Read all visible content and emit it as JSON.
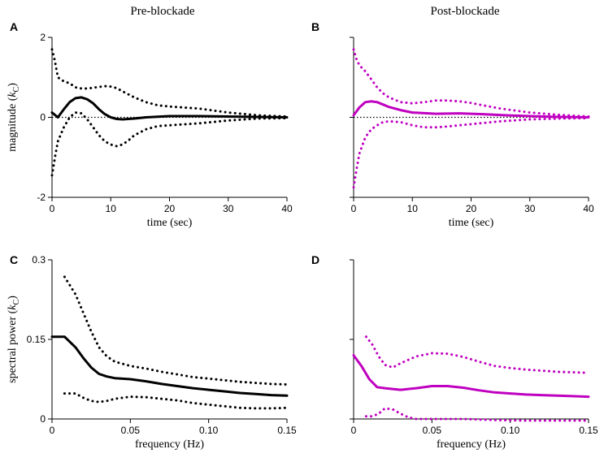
{
  "column_titles": [
    "Pre-blockade",
    "Post-blockade"
  ],
  "colors": {
    "pre": "#000000",
    "post": "#c000c0"
  },
  "chart_data": [
    {
      "panel": "A",
      "type": "line",
      "title": "Pre-blockade",
      "xlabel": "time (sec)",
      "ylabel": "magnitude (k_C)",
      "ylabel_main": "magnitude (",
      "ylabel_sym": "k",
      "ylabel_sub": "C",
      "ylabel_close": ")",
      "xlim": [
        0,
        40
      ],
      "ylim": [
        -2,
        2
      ],
      "xticks": [
        0,
        10,
        20,
        30,
        40
      ],
      "xtick_labels": [
        "0",
        "10",
        "20",
        "30",
        "40"
      ],
      "yticks": [
        -2,
        0,
        2
      ],
      "ytick_labels": [
        "-2",
        "0",
        "2"
      ],
      "zero_line": true,
      "color": "#000000",
      "series": [
        {
          "name": "mean",
          "style": "solid",
          "points": [
            [
              0,
              0.12
            ],
            [
              1,
              0.0
            ],
            [
              2,
              0.2
            ],
            [
              3,
              0.38
            ],
            [
              4,
              0.48
            ],
            [
              5,
              0.5
            ],
            [
              6,
              0.45
            ],
            [
              7,
              0.35
            ],
            [
              8,
              0.2
            ],
            [
              9,
              0.08
            ],
            [
              10,
              0.0
            ],
            [
              11,
              -0.04
            ],
            [
              12,
              -0.05
            ],
            [
              14,
              -0.03
            ],
            [
              16,
              0.0
            ],
            [
              20,
              0.03
            ],
            [
              25,
              0.03
            ],
            [
              30,
              0.02
            ],
            [
              35,
              0.01
            ],
            [
              40,
              0.0
            ]
          ]
        },
        {
          "name": "upper bound",
          "style": "dotted",
          "points": [
            [
              0,
              1.7
            ],
            [
              0.5,
              1.4
            ],
            [
              1,
              1.0
            ],
            [
              2,
              0.9
            ],
            [
              3,
              0.85
            ],
            [
              4,
              0.75
            ],
            [
              5,
              0.72
            ],
            [
              6,
              0.72
            ],
            [
              7,
              0.74
            ],
            [
              8,
              0.76
            ],
            [
              9,
              0.78
            ],
            [
              10,
              0.77
            ],
            [
              11,
              0.73
            ],
            [
              12,
              0.65
            ],
            [
              14,
              0.5
            ],
            [
              16,
              0.38
            ],
            [
              18,
              0.3
            ],
            [
              20,
              0.27
            ],
            [
              22,
              0.25
            ],
            [
              25,
              0.22
            ],
            [
              30,
              0.12
            ],
            [
              35,
              0.05
            ],
            [
              40,
              0.02
            ]
          ]
        },
        {
          "name": "lower bound",
          "style": "dotted",
          "points": [
            [
              0,
              -1.45
            ],
            [
              0.5,
              -1.0
            ],
            [
              1,
              -0.6
            ],
            [
              2,
              -0.25
            ],
            [
              3,
              0.0
            ],
            [
              4,
              0.12
            ],
            [
              5,
              0.1
            ],
            [
              6,
              -0.05
            ],
            [
              7,
              -0.25
            ],
            [
              8,
              -0.45
            ],
            [
              9,
              -0.6
            ],
            [
              10,
              -0.68
            ],
            [
              11,
              -0.72
            ],
            [
              12,
              -0.68
            ],
            [
              13,
              -0.58
            ],
            [
              14,
              -0.45
            ],
            [
              16,
              -0.3
            ],
            [
              18,
              -0.22
            ],
            [
              20,
              -0.2
            ],
            [
              25,
              -0.15
            ],
            [
              30,
              -0.08
            ],
            [
              35,
              -0.03
            ],
            [
              40,
              -0.02
            ]
          ]
        }
      ]
    },
    {
      "panel": "B",
      "type": "line",
      "title": "Post-blockade",
      "xlabel": "time (sec)",
      "xlim": [
        0,
        40
      ],
      "ylim": [
        -2,
        2
      ],
      "xticks": [
        0,
        10,
        20,
        30,
        40
      ],
      "xtick_labels": [
        "0",
        "10",
        "20",
        "30",
        "40"
      ],
      "yticks": [
        -2,
        0,
        2
      ],
      "zero_line": true,
      "color": "#c000c0",
      "series": [
        {
          "name": "mean",
          "style": "solid",
          "points": [
            [
              0,
              0.05
            ],
            [
              1,
              0.25
            ],
            [
              2,
              0.38
            ],
            [
              3,
              0.4
            ],
            [
              4,
              0.38
            ],
            [
              5,
              0.32
            ],
            [
              6,
              0.26
            ],
            [
              8,
              0.18
            ],
            [
              10,
              0.12
            ],
            [
              14,
              0.09
            ],
            [
              18,
              0.1
            ],
            [
              22,
              0.08
            ],
            [
              26,
              0.05
            ],
            [
              30,
              0.03
            ],
            [
              35,
              0.01
            ],
            [
              40,
              0.0
            ]
          ]
        },
        {
          "name": "upper bound",
          "style": "dotted",
          "points": [
            [
              0,
              1.7
            ],
            [
              0.5,
              1.45
            ],
            [
              1,
              1.3
            ],
            [
              2,
              1.15
            ],
            [
              3,
              0.95
            ],
            [
              4,
              0.75
            ],
            [
              5,
              0.6
            ],
            [
              6,
              0.5
            ],
            [
              8,
              0.38
            ],
            [
              10,
              0.35
            ],
            [
              12,
              0.38
            ],
            [
              14,
              0.42
            ],
            [
              16,
              0.42
            ],
            [
              18,
              0.4
            ],
            [
              20,
              0.36
            ],
            [
              22,
              0.3
            ],
            [
              25,
              0.22
            ],
            [
              30,
              0.12
            ],
            [
              35,
              0.06
            ],
            [
              40,
              0.02
            ]
          ]
        },
        {
          "name": "lower bound",
          "style": "dotted",
          "points": [
            [
              0,
              -1.75
            ],
            [
              0.5,
              -1.3
            ],
            [
              1,
              -0.9
            ],
            [
              2,
              -0.5
            ],
            [
              3,
              -0.3
            ],
            [
              4,
              -0.2
            ],
            [
              5,
              -0.12
            ],
            [
              6,
              -0.1
            ],
            [
              8,
              -0.12
            ],
            [
              10,
              -0.2
            ],
            [
              12,
              -0.25
            ],
            [
              14,
              -0.25
            ],
            [
              16,
              -0.23
            ],
            [
              18,
              -0.2
            ],
            [
              20,
              -0.17
            ],
            [
              25,
              -0.1
            ],
            [
              30,
              -0.05
            ],
            [
              35,
              -0.03
            ],
            [
              40,
              -0.02
            ]
          ]
        }
      ]
    },
    {
      "panel": "C",
      "type": "line",
      "xlabel": "frequency (Hz)",
      "ylabel": "spectral power (k_C)",
      "ylabel_main": "spectral power (",
      "ylabel_sym": "k",
      "ylabel_sub": "C",
      "ylabel_close": ")",
      "xlim": [
        0,
        0.15
      ],
      "ylim": [
        0,
        0.3
      ],
      "xticks": [
        0,
        0.05,
        0.1,
        0.15
      ],
      "xtick_labels": [
        "0",
        "0.05",
        "0.10",
        "0.15"
      ],
      "yticks": [
        0,
        0.15,
        0.3
      ],
      "ytick_labels": [
        "0",
        "0.15",
        "0.3"
      ],
      "zero_line": false,
      "color": "#000000",
      "series": [
        {
          "name": "mean",
          "style": "solid",
          "points": [
            [
              0,
              0.155
            ],
            [
              0.008,
              0.155
            ],
            [
              0.015,
              0.135
            ],
            [
              0.02,
              0.115
            ],
            [
              0.025,
              0.097
            ],
            [
              0.03,
              0.085
            ],
            [
              0.035,
              0.08
            ],
            [
              0.04,
              0.077
            ],
            [
              0.05,
              0.075
            ],
            [
              0.06,
              0.071
            ],
            [
              0.07,
              0.066
            ],
            [
              0.08,
              0.062
            ],
            [
              0.09,
              0.058
            ],
            [
              0.1,
              0.055
            ],
            [
              0.11,
              0.052
            ],
            [
              0.12,
              0.049
            ],
            [
              0.13,
              0.047
            ],
            [
              0.14,
              0.045
            ],
            [
              0.15,
              0.044
            ]
          ]
        },
        {
          "name": "upper bound",
          "style": "dotted",
          "points": [
            [
              0.008,
              0.268
            ],
            [
              0.015,
              0.235
            ],
            [
              0.02,
              0.2
            ],
            [
              0.025,
              0.165
            ],
            [
              0.03,
              0.135
            ],
            [
              0.035,
              0.118
            ],
            [
              0.04,
              0.108
            ],
            [
              0.05,
              0.1
            ],
            [
              0.06,
              0.095
            ],
            [
              0.07,
              0.089
            ],
            [
              0.08,
              0.084
            ],
            [
              0.09,
              0.079
            ],
            [
              0.1,
              0.076
            ],
            [
              0.11,
              0.073
            ],
            [
              0.12,
              0.07
            ],
            [
              0.13,
              0.068
            ],
            [
              0.14,
              0.066
            ],
            [
              0.15,
              0.065
            ]
          ]
        },
        {
          "name": "lower bound",
          "style": "dotted",
          "points": [
            [
              0.008,
              0.048
            ],
            [
              0.015,
              0.048
            ],
            [
              0.02,
              0.04
            ],
            [
              0.025,
              0.034
            ],
            [
              0.03,
              0.032
            ],
            [
              0.035,
              0.034
            ],
            [
              0.04,
              0.038
            ],
            [
              0.05,
              0.042
            ],
            [
              0.06,
              0.041
            ],
            [
              0.07,
              0.038
            ],
            [
              0.08,
              0.035
            ],
            [
              0.09,
              0.03
            ],
            [
              0.1,
              0.027
            ],
            [
              0.11,
              0.024
            ],
            [
              0.12,
              0.021
            ],
            [
              0.13,
              0.02
            ],
            [
              0.14,
              0.02
            ],
            [
              0.15,
              0.021
            ]
          ]
        }
      ]
    },
    {
      "panel": "D",
      "type": "line",
      "xlabel": "frequency (Hz)",
      "xlim": [
        0,
        0.15
      ],
      "ylim": [
        0,
        0.3
      ],
      "xticks": [
        0,
        0.05,
        0.1,
        0.15
      ],
      "xtick_labels": [
        "0",
        "0.05",
        "0.10",
        "0.15"
      ],
      "yticks": [
        0,
        0.15,
        0.3
      ],
      "zero_line": false,
      "color": "#c000c0",
      "series": [
        {
          "name": "mean",
          "style": "solid",
          "points": [
            [
              0,
              0.12
            ],
            [
              0.005,
              0.1
            ],
            [
              0.01,
              0.075
            ],
            [
              0.015,
              0.06
            ],
            [
              0.02,
              0.058
            ],
            [
              0.03,
              0.055
            ],
            [
              0.04,
              0.058
            ],
            [
              0.05,
              0.062
            ],
            [
              0.06,
              0.062
            ],
            [
              0.07,
              0.059
            ],
            [
              0.08,
              0.054
            ],
            [
              0.09,
              0.05
            ],
            [
              0.1,
              0.048
            ],
            [
              0.11,
              0.046
            ],
            [
              0.12,
              0.045
            ],
            [
              0.13,
              0.044
            ],
            [
              0.14,
              0.043
            ],
            [
              0.15,
              0.042
            ]
          ]
        },
        {
          "name": "upper bound",
          "style": "dotted",
          "points": [
            [
              0.008,
              0.155
            ],
            [
              0.012,
              0.14
            ],
            [
              0.016,
              0.118
            ],
            [
              0.02,
              0.102
            ],
            [
              0.025,
              0.097
            ],
            [
              0.03,
              0.105
            ],
            [
              0.04,
              0.118
            ],
            [
              0.05,
              0.124
            ],
            [
              0.06,
              0.123
            ],
            [
              0.07,
              0.117
            ],
            [
              0.08,
              0.108
            ],
            [
              0.09,
              0.1
            ],
            [
              0.1,
              0.096
            ],
            [
              0.11,
              0.093
            ],
            [
              0.12,
              0.091
            ],
            [
              0.13,
              0.089
            ],
            [
              0.14,
              0.088
            ],
            [
              0.15,
              0.087
            ]
          ]
        },
        {
          "name": "lower bound",
          "style": "dotted",
          "points": [
            [
              0.008,
              0.005
            ],
            [
              0.012,
              0.005
            ],
            [
              0.016,
              0.01
            ],
            [
              0.02,
              0.02
            ],
            [
              0.025,
              0.018
            ],
            [
              0.03,
              0.01
            ],
            [
              0.035,
              0.003
            ],
            [
              0.04,
              0.0
            ],
            [
              0.05,
              0.0
            ],
            [
              0.07,
              0.0
            ],
            [
              0.09,
              -0.002
            ],
            [
              0.11,
              -0.003
            ],
            [
              0.13,
              -0.003
            ],
            [
              0.15,
              -0.003
            ]
          ]
        }
      ]
    }
  ]
}
